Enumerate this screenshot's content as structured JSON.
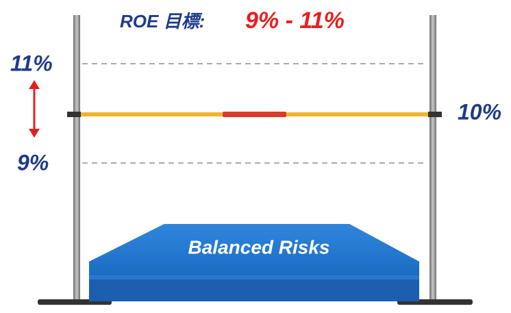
{
  "title": {
    "label": "ROE 目標:",
    "range": "9% - 11%"
  },
  "levels": {
    "upper": "11%",
    "middle": "10%",
    "lower": "9%"
  },
  "mat": {
    "label": "Balanced Risks"
  }
}
